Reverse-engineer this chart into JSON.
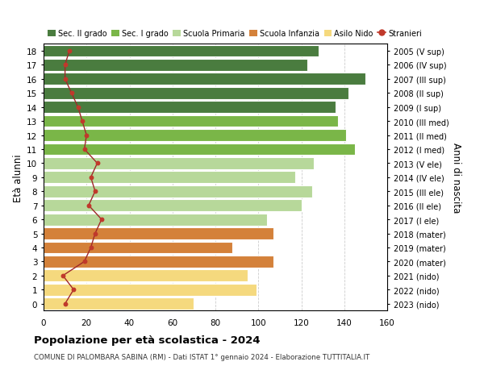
{
  "ages": [
    18,
    17,
    16,
    15,
    14,
    13,
    12,
    11,
    10,
    9,
    8,
    7,
    6,
    5,
    4,
    3,
    2,
    1,
    0
  ],
  "years": [
    "2005 (V sup)",
    "2006 (IV sup)",
    "2007 (III sup)",
    "2008 (II sup)",
    "2009 (I sup)",
    "2010 (III med)",
    "2011 (II med)",
    "2012 (I med)",
    "2013 (V ele)",
    "2014 (IV ele)",
    "2015 (III ele)",
    "2016 (II ele)",
    "2017 (I ele)",
    "2018 (mater)",
    "2019 (mater)",
    "2020 (mater)",
    "2021 (nido)",
    "2022 (nido)",
    "2023 (nido)"
  ],
  "bar_values": [
    128,
    123,
    150,
    142,
    136,
    137,
    141,
    145,
    126,
    117,
    125,
    120,
    104,
    107,
    88,
    107,
    95,
    99,
    70
  ],
  "bar_colors": [
    "#4a7c3f",
    "#4a7c3f",
    "#4a7c3f",
    "#4a7c3f",
    "#4a7c3f",
    "#7ab648",
    "#7ab648",
    "#7ab648",
    "#b7d89a",
    "#b7d89a",
    "#b7d89a",
    "#b7d89a",
    "#b7d89a",
    "#d4813a",
    "#d4813a",
    "#d4813a",
    "#f5d97e",
    "#f5d97e",
    "#f5d97e"
  ],
  "stranieri_values": [
    12,
    10,
    10,
    13,
    16,
    18,
    20,
    19,
    25,
    22,
    24,
    21,
    27,
    24,
    22,
    19,
    9,
    14,
    10
  ],
  "legend_labels": [
    "Sec. II grado",
    "Sec. I grado",
    "Scuola Primaria",
    "Scuola Infanzia",
    "Asilo Nido",
    "Stranieri"
  ],
  "legend_colors": [
    "#4a7c3f",
    "#7ab648",
    "#b7d89a",
    "#d4813a",
    "#f5d97e",
    "#c0392b"
  ],
  "ylabel": "Età alunni",
  "ylabel_right": "Anni di nascita",
  "title": "Popolazione per età scolastica - 2024",
  "subtitle": "COMUNE DI PALOMBARA SABINA (RM) - Dati ISTAT 1° gennaio 2024 - Elaborazione TUTTITALIA.IT",
  "xlim": [
    0,
    160
  ],
  "background_color": "#ffffff",
  "grid_color": "#cccccc",
  "stranieri_color": "#c0392b",
  "stranieri_line_color": "#a0272a"
}
